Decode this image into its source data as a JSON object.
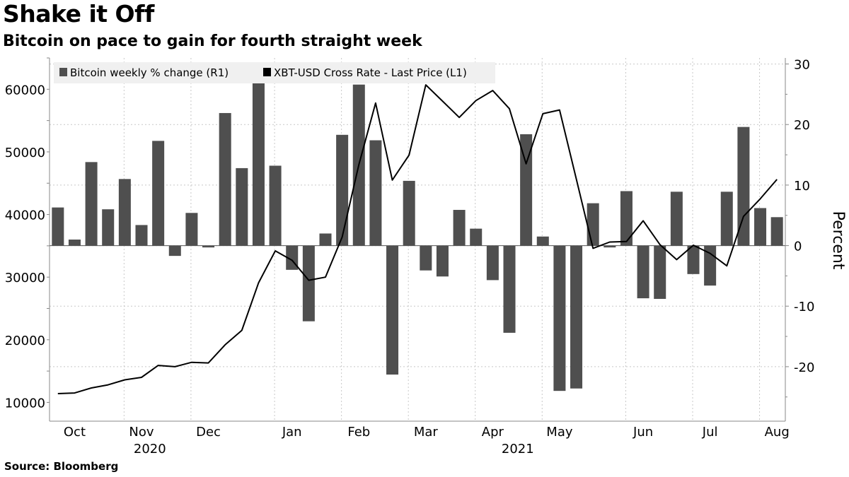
{
  "title": "Shake it Off",
  "subtitle": "Bitcoin on pace to gain for fourth straight week",
  "source": "Source: Bloomberg",
  "chart_data": {
    "type": "bar+line",
    "x_labels": [
      {
        "label": "Oct",
        "week": 1
      },
      {
        "label": "Nov",
        "week": 5
      },
      {
        "label": "Dec",
        "week": 9
      },
      {
        "label": "Jan",
        "week": 14
      },
      {
        "label": "Feb",
        "week": 18
      },
      {
        "label": "Mar",
        "week": 22
      },
      {
        "label": "Apr",
        "week": 26
      },
      {
        "label": "May",
        "week": 30
      },
      {
        "label": "Jun",
        "week": 35
      },
      {
        "label": "Jul",
        "week": 39
      },
      {
        "label": "Aug",
        "week": 43
      }
    ],
    "year_labels": [
      {
        "label": "2020",
        "week": 5.5
      },
      {
        "label": "2021",
        "week": 27.5
      }
    ],
    "left_axis": {
      "ticks": [
        10000,
        20000,
        30000,
        40000,
        50000,
        60000
      ],
      "range": [
        7000,
        65000
      ]
    },
    "right_axis": {
      "title": "Percent",
      "ticks": [
        -20,
        -10,
        0,
        10,
        20,
        30
      ],
      "range": [
        -29,
        31
      ]
    },
    "legend": [
      {
        "label": "Bitcoin weekly % change (R1)",
        "color": "#4f4f4f"
      },
      {
        "label": "XBT-USD Cross Rate - Last Price (L1)",
        "color": "#000000"
      }
    ],
    "series": [
      {
        "name": "Bitcoin weekly % change (R1)",
        "axis": "right",
        "kind": "bar",
        "color": "#4f4f4f",
        "values": [
          6.3,
          1.0,
          13.8,
          6.0,
          11.0,
          3.4,
          17.3,
          -1.7,
          5.4,
          -0.3,
          21.9,
          12.8,
          27.4,
          13.2,
          -4.0,
          -12.5,
          2.0,
          18.3,
          26.6,
          17.4,
          -21.3,
          10.7,
          -4.1,
          -5.1,
          5.9,
          2.8,
          -5.7,
          -14.4,
          18.4,
          1.5,
          -24.0,
          -23.6,
          7.0,
          -0.3,
          9.0,
          -8.7,
          -8.8,
          8.9,
          -4.7,
          -6.6,
          8.9,
          19.6,
          6.2,
          4.7
        ]
      },
      {
        "name": "XBT-USD Cross Rate - Last Price (L1)",
        "axis": "left",
        "kind": "line",
        "color": "#000000",
        "values": [
          11400,
          11500,
          12300,
          12800,
          13600,
          14000,
          15900,
          15700,
          16400,
          16300,
          19200,
          21500,
          29100,
          34200,
          32700,
          29500,
          30000,
          36400,
          48000,
          57800,
          45500,
          49500,
          60700,
          58100,
          55500,
          58200,
          59800,
          56900,
          48100,
          56100,
          56700,
          45700,
          34600,
          35600,
          35700,
          39000,
          35200,
          32800,
          35100,
          33800,
          31800,
          39700,
          42500,
          45600
        ]
      }
    ]
  }
}
